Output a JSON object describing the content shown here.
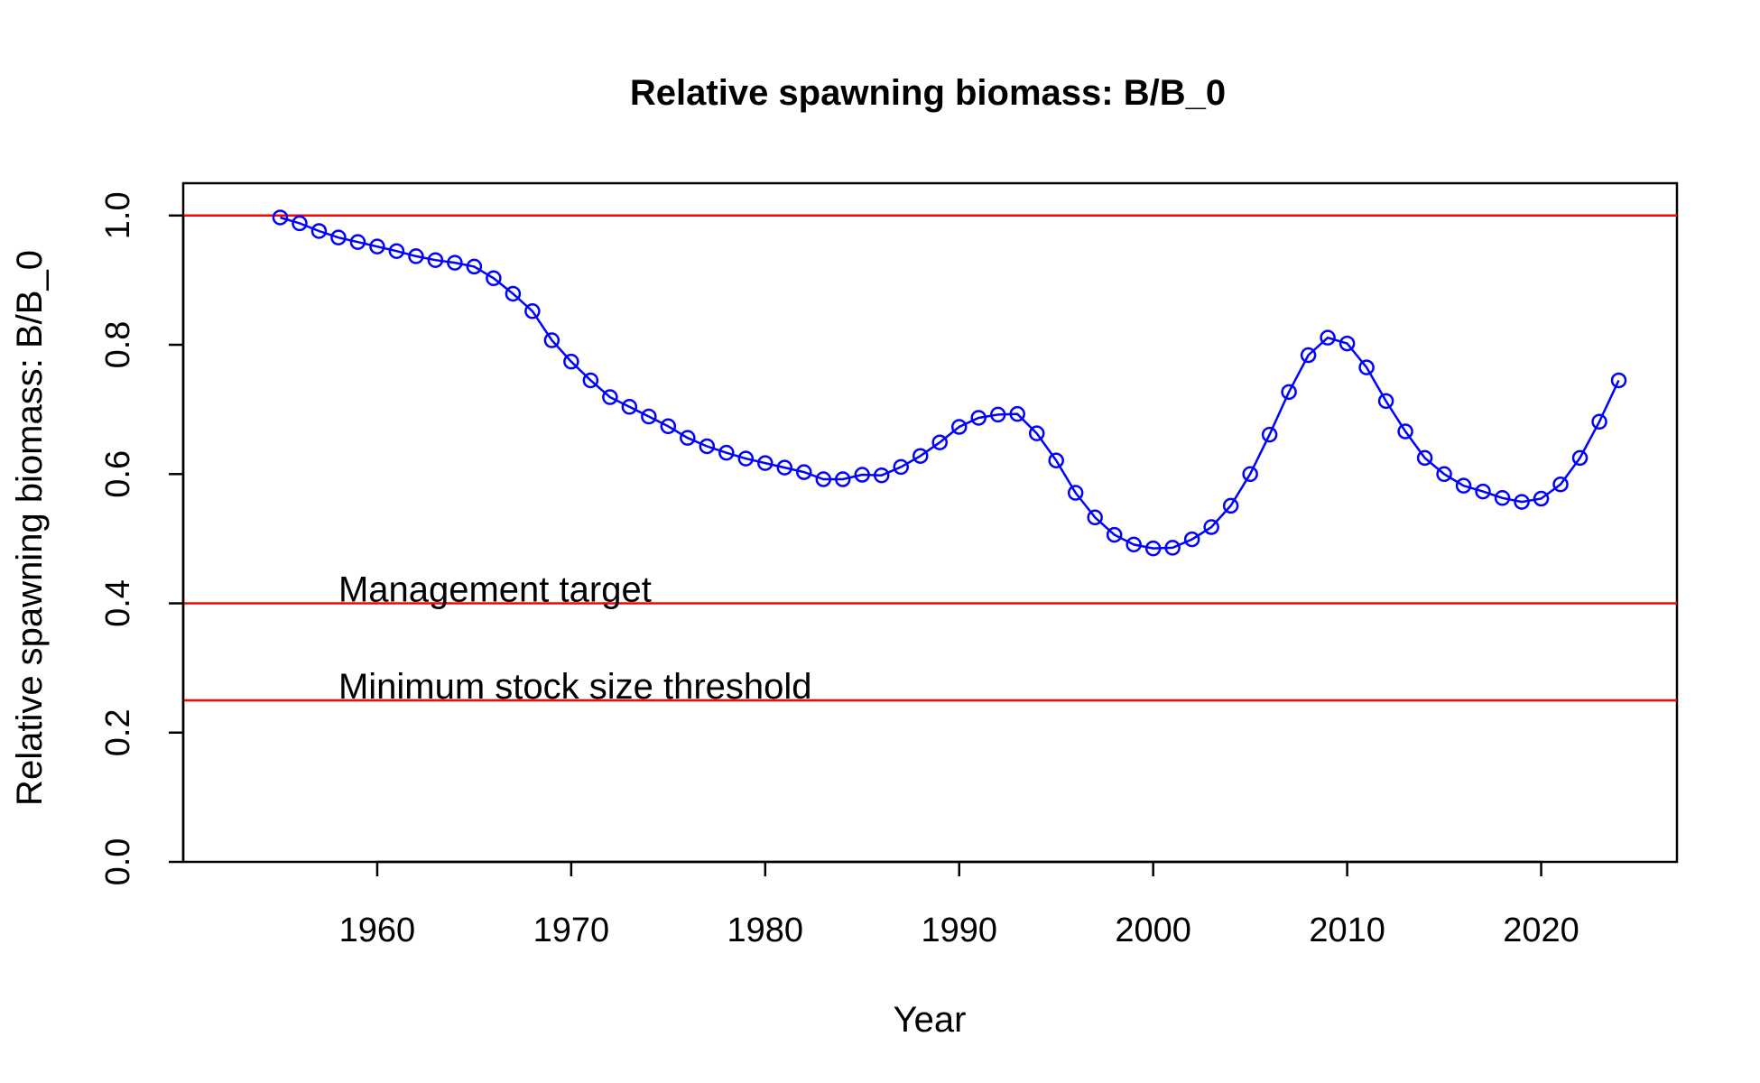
{
  "chart_data": {
    "type": "line",
    "title": "Relative spawning biomass: B/B_0",
    "xlabel": "Year",
    "ylabel": "Relative spawning biomass: B/B_0",
    "xlim": [
      1950,
      2027
    ],
    "ylim": [
      0,
      1.05
    ],
    "x_ticks": [
      1960,
      1970,
      1980,
      1990,
      2000,
      2010,
      2020
    ],
    "y_ticks": [
      0.0,
      0.2,
      0.4,
      0.6,
      0.8,
      1.0
    ],
    "y_tick_labels": [
      "0.0",
      "0.2",
      "0.4",
      "0.6",
      "0.8",
      "1.0"
    ],
    "grid": false,
    "legend": "none",
    "series": [
      {
        "color": "#0000ff",
        "marker": "open-circle",
        "x": [
          1955,
          1956,
          1957,
          1958,
          1959,
          1960,
          1961,
          1962,
          1963,
          1964,
          1965,
          1966,
          1967,
          1968,
          1969,
          1970,
          1971,
          1972,
          1973,
          1974,
          1975,
          1976,
          1977,
          1978,
          1979,
          1980,
          1981,
          1982,
          1983,
          1984,
          1985,
          1986,
          1987,
          1988,
          1989,
          1990,
          1991,
          1992,
          1993,
          1994,
          1995,
          1996,
          1997,
          1998,
          1999,
          2000,
          2001,
          2002,
          2003,
          2004,
          2005,
          2006,
          2007,
          2008,
          2009,
          2010,
          2011,
          2012,
          2013,
          2014,
          2015,
          2016,
          2017,
          2018,
          2019,
          2020,
          2021,
          2022,
          2023,
          2024
        ],
        "values": [
          0.997,
          0.988,
          0.976,
          0.966,
          0.959,
          0.952,
          0.945,
          0.937,
          0.931,
          0.927,
          0.921,
          0.903,
          0.879,
          0.852,
          0.807,
          0.774,
          0.745,
          0.719,
          0.704,
          0.689,
          0.674,
          0.656,
          0.643,
          0.633,
          0.624,
          0.617,
          0.61,
          0.603,
          0.592,
          0.592,
          0.599,
          0.598,
          0.611,
          0.628,
          0.649,
          0.673,
          0.687,
          0.692,
          0.693,
          0.663,
          0.621,
          0.571,
          0.533,
          0.506,
          0.491,
          0.485,
          0.486,
          0.499,
          0.518,
          0.551,
          0.6,
          0.661,
          0.727,
          0.784,
          0.811,
          0.802,
          0.765,
          0.713,
          0.666,
          0.625,
          0.6,
          0.582,
          0.573,
          0.563,
          0.557,
          0.562,
          0.584,
          0.625,
          0.681,
          0.745
        ]
      }
    ],
    "reference_lines": [
      {
        "y": 1.0,
        "color": "#ff0000",
        "label": ""
      },
      {
        "y": 0.4,
        "color": "#ff0000",
        "label": "Management target"
      },
      {
        "y": 0.25,
        "color": "#ff0000",
        "label": "Minimum stock size threshold"
      }
    ],
    "reference_label_x": 1958
  }
}
